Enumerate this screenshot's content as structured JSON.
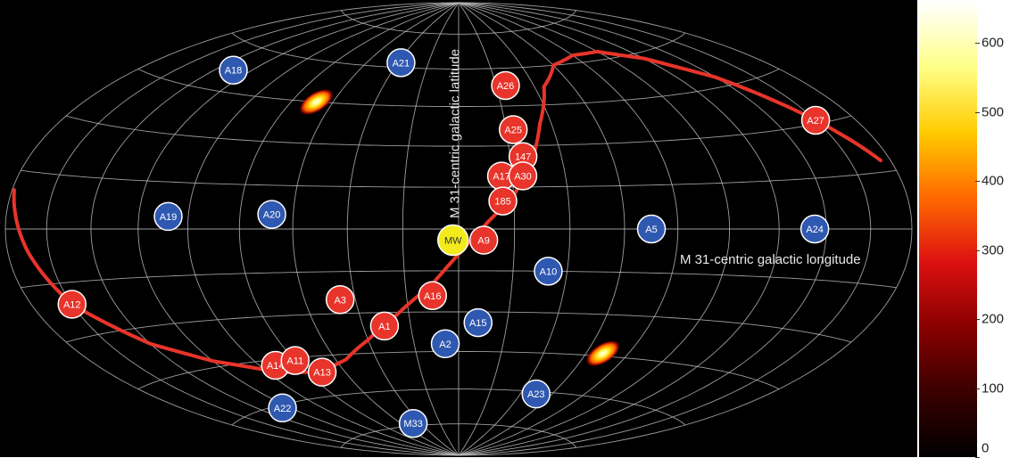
{
  "chart_data": {
    "type": "scatter",
    "projection": "hammer-aitoff all-sky",
    "xlabel": "M 31-centric galactic longitude",
    "ylabel": "M 31-centric galactic latitude",
    "xlim": [
      180,
      -180
    ],
    "ylim": [
      -90,
      90
    ],
    "grid": true,
    "colorbar": {
      "range": [
        0,
        660
      ],
      "ticks": [
        0,
        100,
        200,
        300,
        400,
        500,
        600
      ],
      "colors": [
        "#000000",
        "#3a0000",
        "#8a0000",
        "#dd1111",
        "#ff6a00",
        "#ffcc00",
        "#ffff88",
        "#ffffff"
      ]
    },
    "colors": {
      "plane_member": "#e8342a",
      "non_member": "#2f58b0",
      "milky_way": "#f2ea1c",
      "plane_curve": "#e8342a",
      "grid": "#b8b8b8",
      "background": "#000000",
      "marker_text": "#ffffff"
    },
    "points": [
      {
        "label": "A21",
        "lon": 38,
        "lat": 62,
        "group": "non_member"
      },
      {
        "label": "A18",
        "lon": 130,
        "lat": 52,
        "group": "non_member"
      },
      {
        "label": "A26",
        "lon": -25,
        "lat": 53,
        "group": "plane_member"
      },
      {
        "label": "A25",
        "lon": -23,
        "lat": 36,
        "group": "plane_member"
      },
      {
        "label": "147",
        "lon": -25,
        "lat": 26,
        "group": "plane_member"
      },
      {
        "label": "A17",
        "lon": -16,
        "lat": 19,
        "group": "plane_member"
      },
      {
        "label": "A30",
        "lon": -24,
        "lat": 19,
        "group": "plane_member"
      },
      {
        "label": "185",
        "lon": -16,
        "lat": 10,
        "group": "plane_member"
      },
      {
        "label": "A27",
        "lon": -160,
        "lat": 31,
        "group": "plane_member"
      },
      {
        "label": "A19",
        "lon": 108,
        "lat": 4,
        "group": "non_member"
      },
      {
        "label": "A20",
        "lon": 68,
        "lat": 5,
        "group": "non_member"
      },
      {
        "label": "A5",
        "lon": -70,
        "lat": 0,
        "group": "non_member"
      },
      {
        "label": "A24",
        "lon": -135,
        "lat": 0,
        "group": "non_member"
      },
      {
        "label": "MW",
        "lon": 2,
        "lat": -4,
        "group": "milky_way"
      },
      {
        "label": "A9",
        "lon": -9,
        "lat": -4,
        "group": "plane_member"
      },
      {
        "label": "A10",
        "lon": -33,
        "lat": -15,
        "group": "non_member"
      },
      {
        "label": "A12",
        "lon": 160,
        "lat": -21,
        "group": "plane_member"
      },
      {
        "label": "A3",
        "lon": 46,
        "lat": -25,
        "group": "plane_member"
      },
      {
        "label": "A16",
        "lon": 10,
        "lat": -24,
        "group": "plane_member"
      },
      {
        "label": "A1",
        "lon": 31,
        "lat": -35,
        "group": "plane_member"
      },
      {
        "label": "A15",
        "lon": -8,
        "lat": -34,
        "group": "non_member"
      },
      {
        "label": "A2",
        "lon": 6,
        "lat": -42,
        "group": "non_member"
      },
      {
        "label": "A14",
        "lon": 92,
        "lat": -47,
        "group": "plane_member"
      },
      {
        "label": "A11",
        "lon": 80,
        "lat": -46,
        "group": "plane_member"
      },
      {
        "label": "A13",
        "lon": 72,
        "lat": -51,
        "group": "plane_member"
      },
      {
        "label": "A22",
        "lon": 125,
        "lat": -61,
        "group": "non_member"
      },
      {
        "label": "A23",
        "lon": -50,
        "lat": -61,
        "group": "non_member"
      },
      {
        "label": "M33",
        "lon": 48,
        "lat": -74,
        "group": "non_member"
      }
    ],
    "plane_curve": [
      {
        "lon": 179,
        "lat": 10
      },
      {
        "lon": 170,
        "lat": -6
      },
      {
        "lon": 160,
        "lat": -21
      },
      {
        "lon": 140,
        "lat": -35
      },
      {
        "lon": 120,
        "lat": -43
      },
      {
        "lon": 100,
        "lat": -48
      },
      {
        "lon": 88,
        "lat": -50
      },
      {
        "lon": 72,
        "lat": -51
      },
      {
        "lon": 55,
        "lat": -47
      },
      {
        "lon": 40,
        "lat": -40
      },
      {
        "lon": 25,
        "lat": -31
      },
      {
        "lon": 10,
        "lat": -20
      },
      {
        "lon": 0,
        "lat": -9
      },
      {
        "lon": -10,
        "lat": 2
      },
      {
        "lon": -20,
        "lat": 12
      },
      {
        "lon": -28,
        "lat": 24
      },
      {
        "lon": -35,
        "lat": 38
      },
      {
        "lon": -45,
        "lat": 52
      },
      {
        "lon": -60,
        "lat": 60
      },
      {
        "lon": -80,
        "lat": 63
      },
      {
        "lon": -100,
        "lat": 63
      },
      {
        "lon": -120,
        "lat": 58
      },
      {
        "lon": -140,
        "lat": 48
      },
      {
        "lon": -160,
        "lat": 31
      },
      {
        "lon": -175,
        "lat": 18
      }
    ],
    "density_peaks": [
      {
        "lon": 68,
        "lat": 45,
        "value": 640
      },
      {
        "lon": -68,
        "lat": -44,
        "value": 640
      }
    ]
  }
}
